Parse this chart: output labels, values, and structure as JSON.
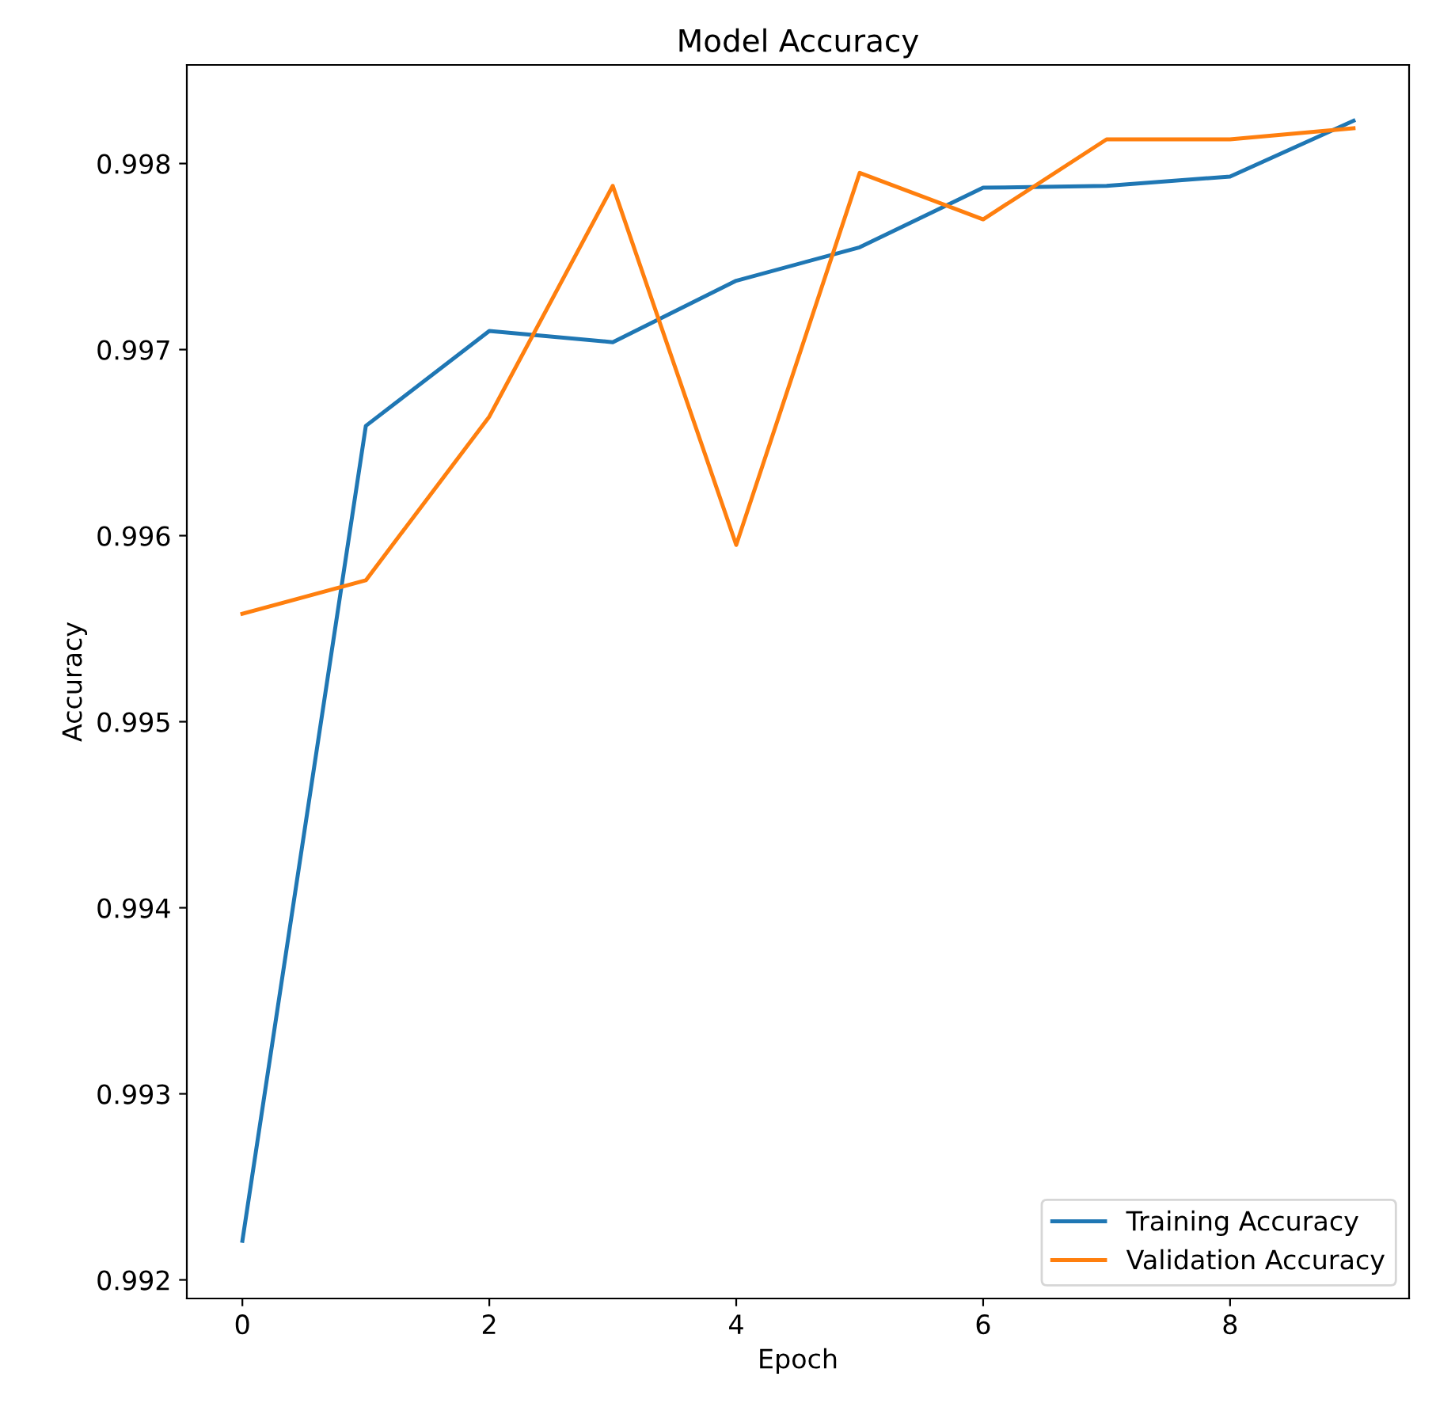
{
  "chart_data": {
    "type": "line",
    "title": "Model Accuracy",
    "xlabel": "Epoch",
    "ylabel": "Accuracy",
    "x": [
      0,
      1,
      2,
      3,
      4,
      5,
      6,
      7,
      8,
      9
    ],
    "series": [
      {
        "name": "Training Accuracy",
        "color": "#1f77b4",
        "values": [
          0.99221,
          0.99659,
          0.9971,
          0.99704,
          0.99737,
          0.99755,
          0.99787,
          0.99788,
          0.99793,
          0.99823
        ]
      },
      {
        "name": "Validation Accuracy",
        "color": "#ff7f0e",
        "values": [
          0.99558,
          0.99576,
          0.99664,
          0.99788,
          0.99595,
          0.99795,
          0.9977,
          0.99813,
          0.99813,
          0.99819
        ]
      }
    ],
    "xlim": [
      -0.45,
      9.45
    ],
    "ylim": [
      0.9919,
      0.99853
    ],
    "xticks": [
      0,
      2,
      4,
      6,
      8
    ],
    "yticks": [
      0.992,
      0.993,
      0.994,
      0.995,
      0.996,
      0.997,
      0.998
    ],
    "legend": "lower right",
    "grid": false
  }
}
